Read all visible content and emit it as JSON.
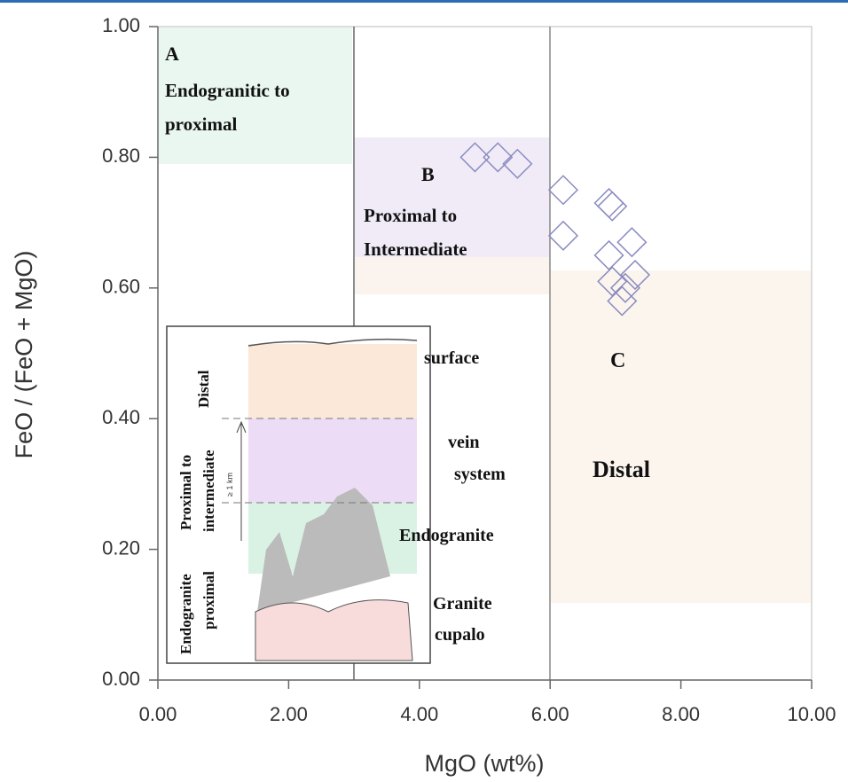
{
  "chart_data": {
    "type": "scatter",
    "x_label": "MgO (wt%)",
    "y_label": "FeO / (FeO + MgO)",
    "xlim": [
      0,
      10
    ],
    "ylim": [
      0,
      1
    ],
    "xticks": [
      {
        "value": 0,
        "label": "0.00"
      },
      {
        "value": 2,
        "label": "2.00"
      },
      {
        "value": 4,
        "label": "4.00"
      },
      {
        "value": 6,
        "label": "6.00"
      },
      {
        "value": 8,
        "label": "8.00"
      },
      {
        "value": 10,
        "label": "10.00"
      }
    ],
    "yticks": [
      {
        "value": 0,
        "label": "0.00"
      },
      {
        "value": 0.2,
        "label": "0.20"
      },
      {
        "value": 0.4,
        "label": "0.40"
      },
      {
        "value": 0.6,
        "label": "0.60"
      },
      {
        "value": 0.8,
        "label": "0.80"
      },
      {
        "value": 1,
        "label": "1.00"
      }
    ],
    "series": [
      {
        "color": "#8a8cc0",
        "x": [
          4.85,
          5.2,
          5.5,
          6.2,
          6.9,
          6.95,
          6.2,
          7.25,
          6.9,
          7.3,
          6.95,
          7.15,
          7.1
        ],
        "values": [
          0.8,
          0.8,
          0.79,
          0.75,
          0.73,
          0.725,
          0.68,
          0.67,
          0.65,
          0.62,
          0.61,
          0.6,
          0.58
        ]
      }
    ]
  },
  "regions": [
    {
      "letter": "A",
      "label": [
        "Endogranitic to",
        "proximal"
      ]
    },
    {
      "letter": "B",
      "label": [
        "Proximal to",
        "Intermediate"
      ]
    },
    {
      "letter": "C",
      "label": [
        "Distal"
      ]
    }
  ],
  "inset": {
    "right_labels": [
      "surface",
      "vein",
      "system",
      "Endogranite",
      "Granite",
      "cupalo"
    ],
    "left_labels": [
      "Distal",
      "Proximal to",
      "intermediate",
      "≥ 1 km",
      "Endogranite",
      "proximal"
    ]
  }
}
